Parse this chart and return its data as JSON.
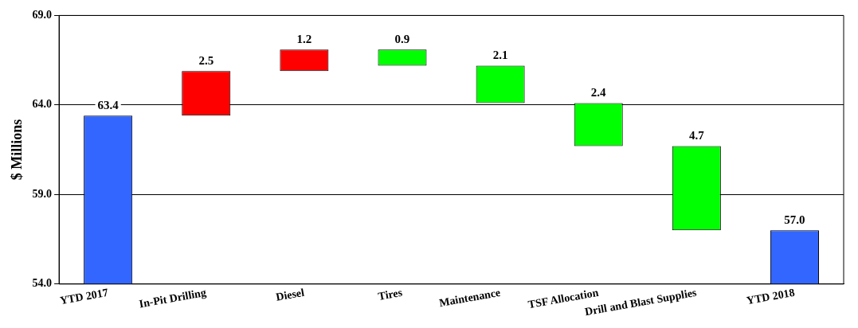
{
  "chart_data": {
    "type": "bar",
    "ylabel": "$ Millions",
    "categories": [
      "YTD 2017",
      "In-Pit Drilling",
      "Diesel",
      "Tires",
      "Maintenance",
      "TSF Allocation",
      "Drill and Blast Supplies",
      "YTD 2018"
    ],
    "values": [
      63.4,
      2.5,
      1.2,
      -0.9,
      -2.1,
      -2.4,
      -4.7,
      57.0
    ],
    "base": [
      0,
      63.4,
      65.9,
      67.1,
      66.2,
      64.1,
      61.7,
      0
    ],
    "colors": [
      "#3366ff",
      "#ff0000",
      "#ff0000",
      "#00ff00",
      "#00ff00",
      "#00ff00",
      "#00ff00",
      "#3366ff"
    ],
    "value_labels": [
      "63.4",
      "2.5",
      "1.2",
      "0.9",
      "2.1",
      "2.4",
      "4.7",
      "57.0"
    ],
    "ylim": [
      54,
      69
    ],
    "yticks": [
      {
        "value": 54,
        "label": "54.0"
      },
      {
        "value": 59,
        "label": "59.0"
      },
      {
        "value": 64,
        "label": "64.0"
      },
      {
        "value": 69,
        "label": "69.0"
      }
    ],
    "grid": "y",
    "legend": false
  }
}
